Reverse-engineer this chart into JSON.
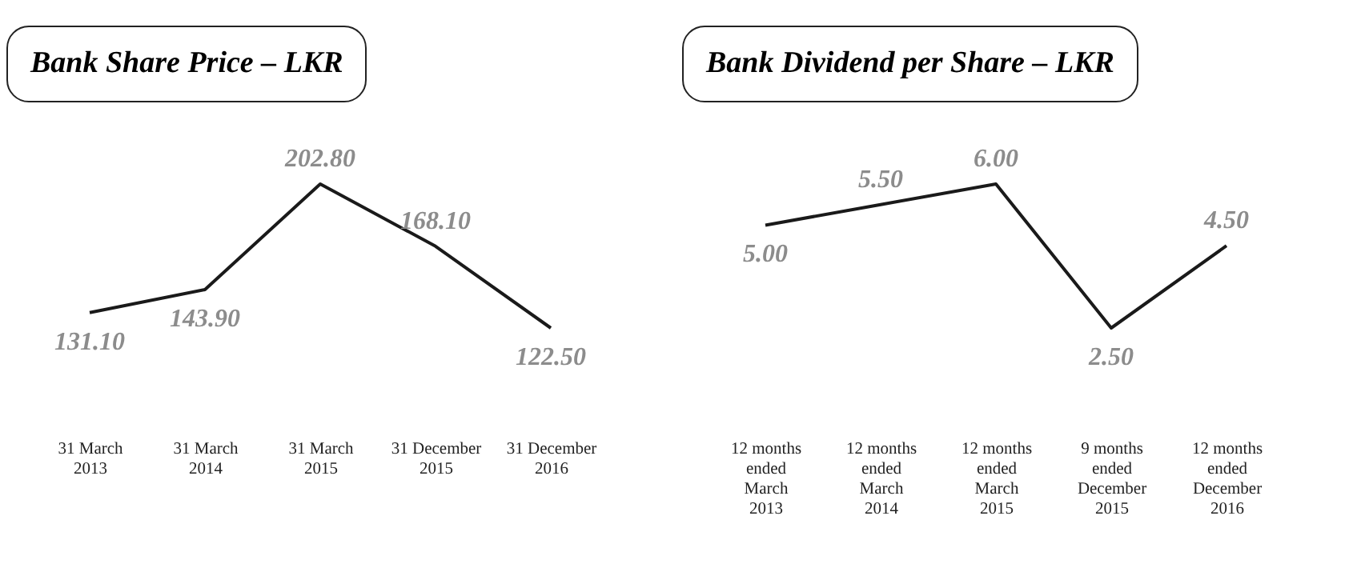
{
  "chart_data": [
    {
      "type": "line",
      "title": "Bank Share Price – LKR",
      "categories": [
        "31 March 2013",
        "31 March 2014",
        "31 March 2015",
        "31 December 2015",
        "31 December 2016"
      ],
      "series": [
        {
          "color": "#1a1a1a",
          "values": [
            131.1,
            143.9,
            202.8,
            168.1,
            122.5
          ],
          "value_labels": [
            "131.10",
            "143.90",
            "202.80",
            "168.10",
            "122.50"
          ]
        }
      ],
      "tick_labels": "x"
    },
    {
      "type": "line",
      "title": "Bank Dividend per Share – LKR",
      "categories": [
        "12 months ended March 2013",
        "12 months ended March 2014",
        "12 months ended March 2015",
        "9 months ended December 2015",
        "12 months ended December 2016"
      ],
      "series": [
        {
          "color": "#1a1a1a",
          "values": [
            5.0,
            5.5,
            6.0,
            2.5,
            4.5
          ],
          "value_labels": [
            "5.00",
            "5.50",
            "6.00",
            "2.50",
            "4.50"
          ]
        }
      ],
      "tick_labels": "x"
    }
  ]
}
